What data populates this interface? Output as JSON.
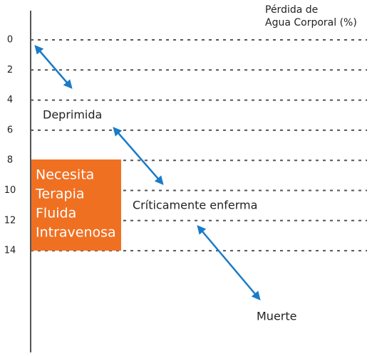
{
  "axis": {
    "title_lines": [
      "Pérdida de",
      "Agua Corporal (%)"
    ],
    "ticks": [
      "0",
      "2",
      "4",
      "6",
      "8",
      "10",
      "12",
      "14"
    ]
  },
  "box": {
    "lines": [
      "Necesita",
      "Terapia",
      "Fluida",
      "Intravenosa"
    ]
  },
  "labels": [
    "Deprimida",
    "Críticamente enferma",
    "Muerte"
  ]
}
